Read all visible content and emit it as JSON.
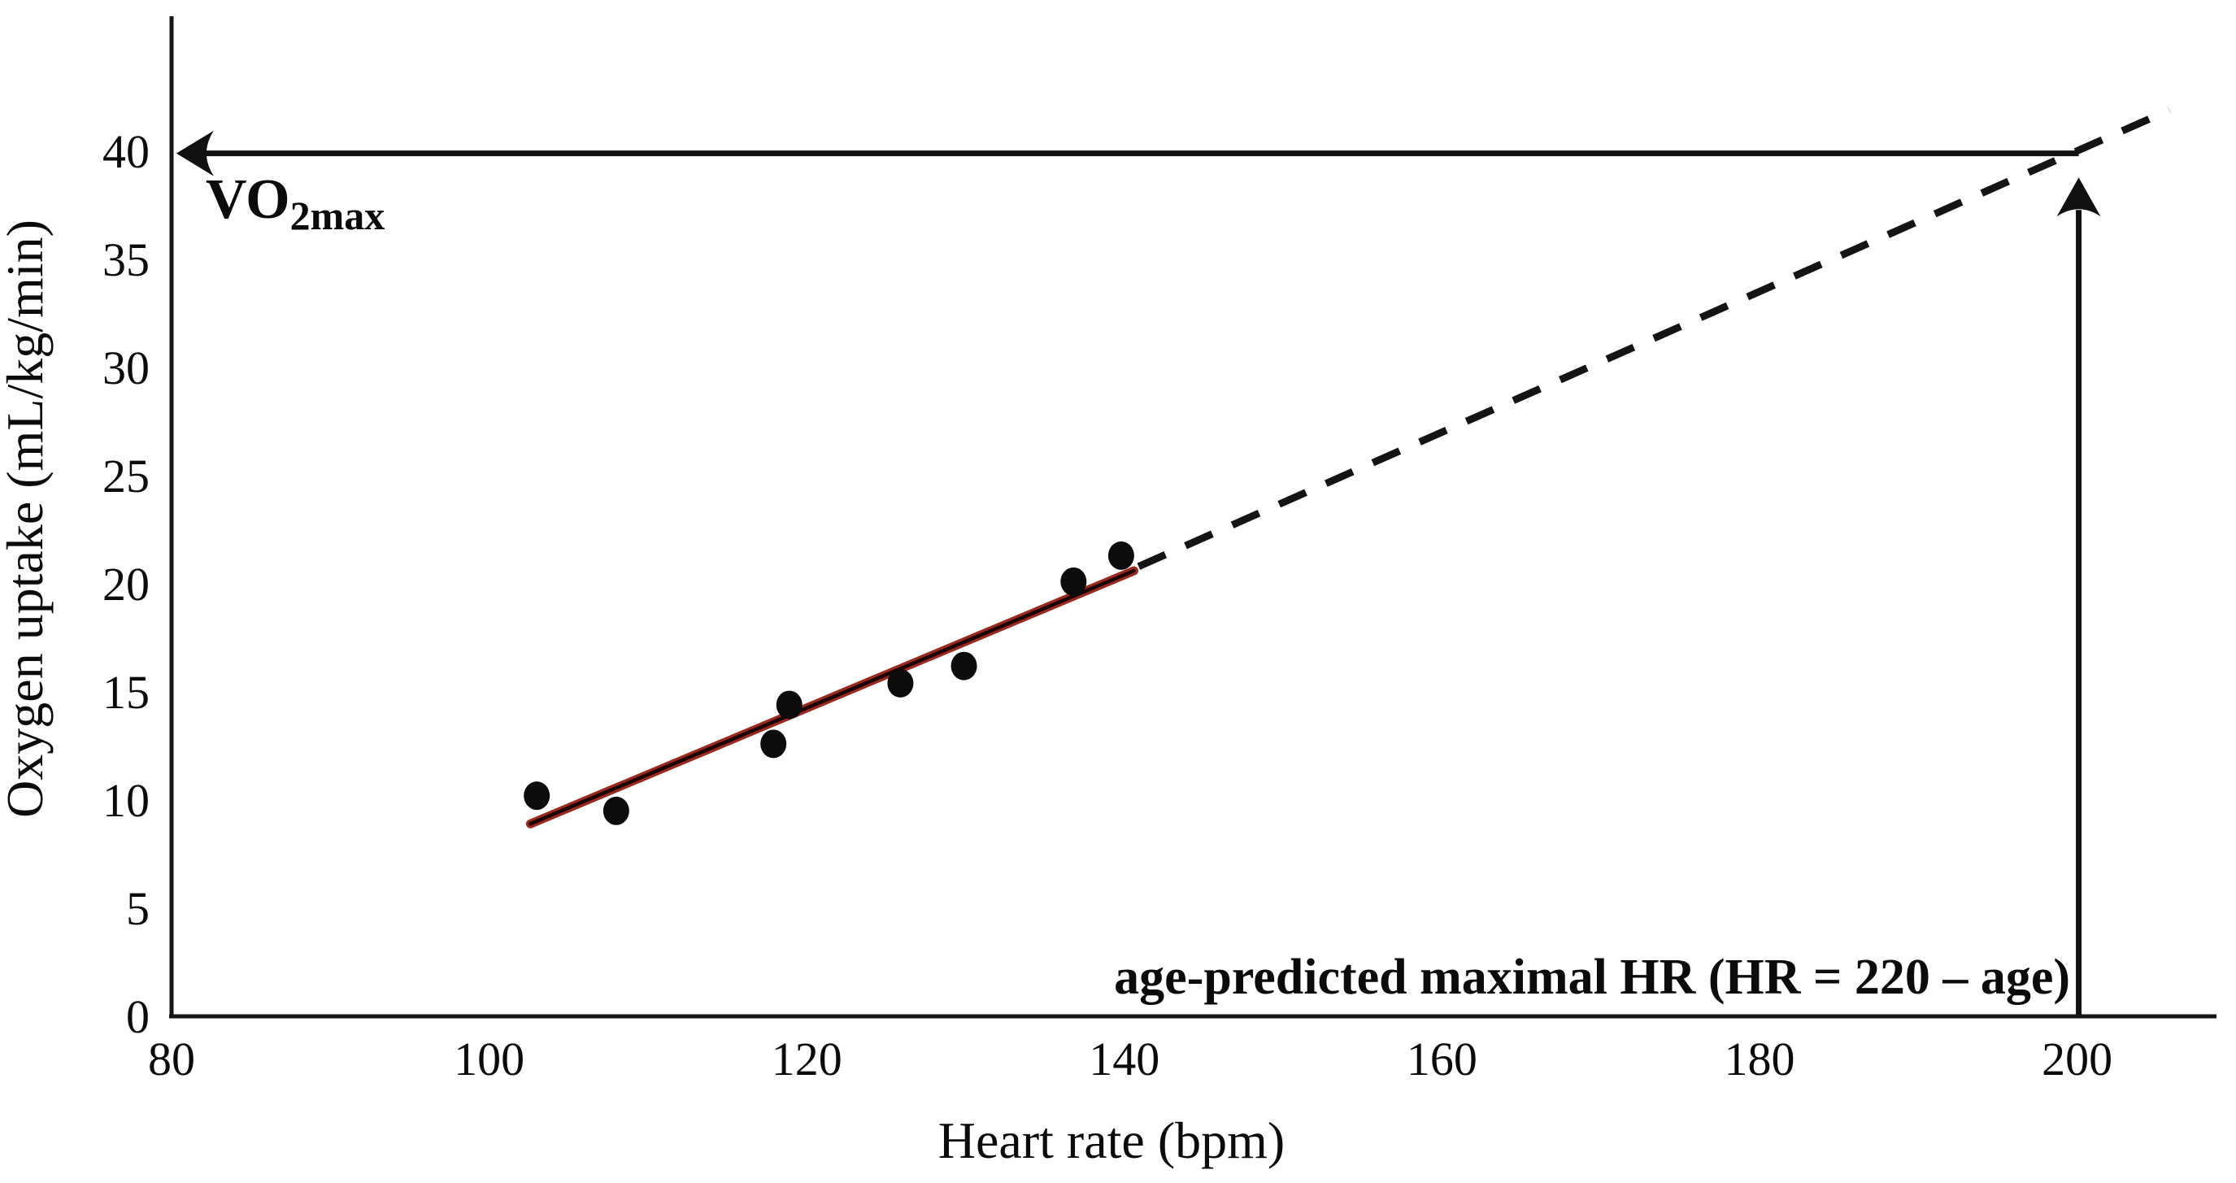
{
  "figure": {
    "background": "#ffffff"
  },
  "chart_data": {
    "type": "scatter",
    "title": "",
    "xlabel": "Heart rate (bpm)",
    "ylabel": "Oxygen uptake (mL/kg/min)",
    "xlim": [
      80,
      208
    ],
    "ylim": [
      0,
      44
    ],
    "xticks": [
      80,
      100,
      120,
      140,
      160,
      180,
      200
    ],
    "yticks": [
      0,
      5,
      10,
      15,
      20,
      25,
      30,
      35,
      40
    ],
    "grid": false,
    "legend": "none",
    "points": [
      [
        103.0,
        10.2
      ],
      [
        108.0,
        9.5
      ],
      [
        117.9,
        12.6
      ],
      [
        118.9,
        14.4
      ],
      [
        125.9,
        15.4
      ],
      [
        129.9,
        16.2
      ],
      [
        136.8,
        20.1
      ],
      [
        139.8,
        21.3
      ]
    ],
    "regression_line": {
      "x1": 102.6,
      "y1": 8.9,
      "x2": 140.6,
      "y2": 20.6
    },
    "extrapolation_dashed_line": {
      "x1": 140.9,
      "y1": 20.8,
      "x2": 205.8,
      "y2": 41.9
    },
    "vo2max_arrow": {
      "y": 39.9,
      "x_from": 200.1,
      "x_to": 80.2,
      "direction": "left"
    },
    "hrmax_arrow": {
      "x": 200.1,
      "y_from": 0,
      "y_to": 39.5,
      "direction": "up"
    },
    "vo2max_label": {
      "main": "VO",
      "sub": "2max"
    },
    "hrmax_label": "age-predicted maximal HR (HR = 220 – age)",
    "colors": {
      "axis": "#161616",
      "point": "#0c0c0c",
      "dashed": "#141414",
      "arrow": "#111111",
      "regression_outer": "#9a2a1f",
      "regression_core": "#1d0303",
      "text": "#0b0b0b"
    }
  }
}
